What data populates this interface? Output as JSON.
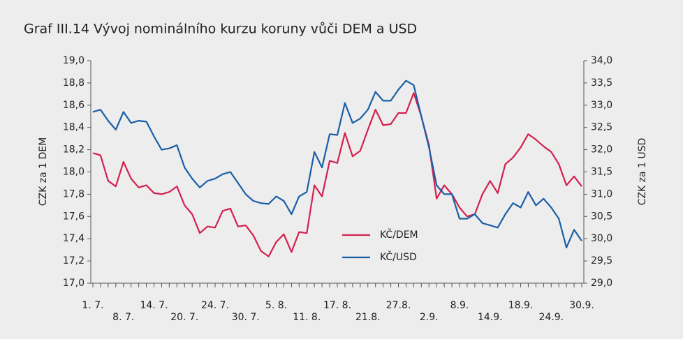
{
  "chart_data": {
    "type": "line",
    "title": "Graf III.14 Vývoj nominálního kurzu koruny vůči DEM a USD",
    "y_label": "CZK za 1 DEM",
    "y2_label": "CZK za 1 USD",
    "categories": [
      "1. 7.",
      null,
      null,
      null,
      "8. 7.",
      null,
      null,
      null,
      "14. 7.",
      null,
      null,
      null,
      "20. 7.",
      null,
      null,
      null,
      "24. 7.",
      null,
      null,
      null,
      "30. 7.",
      null,
      null,
      null,
      "5. 8.",
      null,
      null,
      null,
      "11. 8.",
      null,
      null,
      null,
      "17. 8.",
      null,
      null,
      null,
      "21.8.",
      null,
      null,
      null,
      "27.8.",
      null,
      null,
      null,
      "2.9.",
      null,
      null,
      null,
      "8.9.",
      null,
      null,
      null,
      "14.9.",
      null,
      null,
      null,
      "18.9.",
      null,
      null,
      null,
      "24.9.",
      null,
      null,
      null,
      "30.9."
    ],
    "series": [
      {
        "name": "KČ/DEM",
        "color": "#d4204f",
        "values": [
          18.17,
          18.15,
          17.92,
          17.87,
          18.09,
          17.94,
          17.86,
          17.88,
          17.81,
          17.8,
          17.82,
          17.87,
          17.7,
          17.62,
          17.45,
          17.51,
          17.5,
          17.65,
          17.67,
          17.51,
          17.52,
          17.43,
          17.29,
          17.24,
          17.37,
          17.44,
          17.28,
          17.46,
          17.45,
          17.88,
          17.78,
          18.1,
          18.08,
          18.35,
          18.14,
          18.19,
          18.38,
          18.56,
          18.42,
          18.43,
          18.53,
          18.53,
          18.71,
          18.5,
          18.24,
          17.76,
          17.88,
          17.8,
          17.68,
          17.6,
          17.62,
          17.8,
          17.92,
          17.81,
          18.07,
          18.13,
          18.22,
          18.34,
          18.29,
          18.23,
          18.18,
          18.07,
          17.88,
          17.96,
          17.87
        ]
      },
      {
        "name": "KČ/USD",
        "color": "#1a5ea6",
        "axis": "y2",
        "values": [
          32.85,
          32.9,
          32.65,
          32.45,
          32.85,
          32.6,
          32.65,
          32.63,
          32.3,
          32.0,
          32.03,
          32.1,
          31.6,
          31.35,
          31.15,
          31.3,
          31.35,
          31.45,
          31.5,
          31.25,
          31.0,
          30.85,
          30.8,
          30.78,
          30.95,
          30.85,
          30.55,
          30.95,
          31.05,
          31.95,
          31.6,
          32.35,
          32.33,
          33.05,
          32.6,
          32.7,
          32.9,
          33.3,
          33.1,
          33.1,
          33.35,
          33.55,
          33.45,
          32.75,
          32.05,
          31.2,
          31.0,
          31.0,
          30.45,
          30.45,
          30.55,
          30.35,
          30.3,
          30.25,
          30.55,
          30.8,
          30.7,
          31.05,
          30.75,
          30.9,
          30.7,
          30.45,
          29.8,
          30.2,
          29.95
        ]
      }
    ],
    "ylim": [
      17.0,
      19.0
    ],
    "yticks": [
      {
        "value": 17.0,
        "label": "17,0"
      },
      {
        "value": 17.2,
        "label": "17,2"
      },
      {
        "value": 17.4,
        "label": "17,4"
      },
      {
        "value": 17.6,
        "label": "17,6"
      },
      {
        "value": 17.8,
        "label": "17,8"
      },
      {
        "value": 18.0,
        "label": "18,0"
      },
      {
        "value": 18.2,
        "label": "18,2"
      },
      {
        "value": 18.4,
        "label": "18,4"
      },
      {
        "value": 18.6,
        "label": "18,6"
      },
      {
        "value": 18.8,
        "label": "18,8"
      },
      {
        "value": 19.0,
        "label": "19,0"
      }
    ],
    "y2lim": [
      29.0,
      34.0
    ],
    "y2ticks": [
      {
        "value": 29.0,
        "label": "29,0"
      },
      {
        "value": 29.5,
        "label": "29,5"
      },
      {
        "value": 30.0,
        "label": "30,0"
      },
      {
        "value": 30.5,
        "label": "30,5"
      },
      {
        "value": 31.0,
        "label": "31,0"
      },
      {
        "value": 31.5,
        "label": "31,5"
      },
      {
        "value": 32.0,
        "label": "32,0"
      },
      {
        "value": 32.5,
        "label": "32,5"
      },
      {
        "value": 33.0,
        "label": "33,0"
      },
      {
        "value": 33.5,
        "label": "33,5"
      },
      {
        "value": 34.0,
        "label": "34,0"
      }
    ],
    "grid": false
  }
}
